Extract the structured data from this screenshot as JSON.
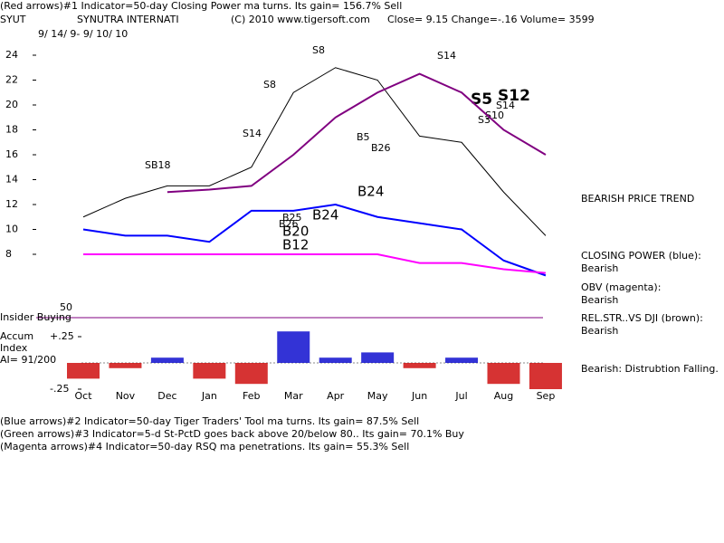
{
  "chart_data": [
    {
      "type": "line",
      "texts": [
        "(Red arrows)#1 Indicator=50-day Closing Power ma turns.  Its gain= 156.7% Sell",
        "SYUT",
        "SYNUTRA INTERNATI",
        "(C) 2010 www.tigersoft.com",
        "Close=  9.15  Change=-.16 Volume= 3599",
        "9/ 14/ 9- 9/ 10/ 10",
        "BEARISH PRICE TREND",
        "CLOSING POWER (blue):",
        "Bearish",
        "OBV (magenta):",
        "Bearish",
        "REL.STR..VS DJI (brown):",
        "Bearish",
        "Bearish: Distrubtion Falling.",
        "Insider Buying",
        "50",
        "(Blue arrows)#2 Indicator=50-day Tiger Traders' Tool ma turns.  Its gain= 87.5% Sell",
        "(Green arrows)#3 Indicator=5-d St-PctD goes back above 20/below 80..  Its gain= 70.1% Buy",
        "(Magenta arrows)#4 Indicator=50-day RSQ ma penetrations.  Its gain= 55.3% Sell"
      ],
      "annotations": [
        "SB18",
        "S14",
        "S8",
        "S8",
        "S14",
        "B5",
        "B26",
        "B25",
        "B26",
        "B20",
        "B12",
        "B24",
        "B24",
        "S5",
        "S12",
        "S14",
        "S10",
        "S3"
      ],
      "categories": [
        "Oct",
        "Nov",
        "Dec",
        "Jan",
        "Feb",
        "Mar",
        "Apr",
        "May",
        "Jun",
        "Jul",
        "Aug",
        "Sep"
      ],
      "series": [
        {
          "color": "#000000",
          "values": [
            11,
            12.5,
            13.5,
            13.5,
            15,
            21,
            23,
            22,
            17.5,
            17,
            13,
            9.5
          ]
        },
        {
          "color": "#800080",
          "values": [
            null,
            null,
            13,
            13.2,
            13.5,
            16,
            19,
            21,
            22.5,
            21,
            18,
            16
          ]
        },
        {
          "name": "CLOSING POWER (blue):",
          "color": "#0000ff",
          "values": [
            10,
            9.5,
            9.5,
            9,
            11.5,
            11.5,
            12,
            11,
            10.5,
            10,
            7.5,
            6.3
          ]
        },
        {
          "name": "OBV (magenta):",
          "color": "#ff00ff",
          "values": [
            8,
            8,
            8,
            8,
            8,
            8,
            8,
            8,
            7.3,
            7.3,
            6.8,
            6.5
          ]
        }
      ],
      "ylim": [
        6,
        26
      ],
      "yticks": [
        8,
        10,
        12,
        14,
        16,
        18,
        20,
        22,
        24
      ]
    },
    {
      "type": "bar",
      "texts": [
        "Accum",
        "Index",
        "AI= 91/200"
      ],
      "categories": [
        "Oct",
        "Nov",
        "Dec",
        "Jan",
        "Feb",
        "Mar",
        "Apr",
        "May",
        "Jun",
        "Jul",
        "Aug",
        "Sep"
      ],
      "values": [
        -0.15,
        -0.05,
        0.05,
        -0.15,
        -0.2,
        0.3,
        0.05,
        0.1,
        -0.05,
        0.05,
        -0.2,
        -0.25
      ],
      "pos_color": "#0000cc",
      "neg_color": "#cc0000",
      "ylim": [
        -0.35,
        0.35
      ],
      "yticks": [
        {
          "value": 0.25,
          "label": "+.25"
        },
        {
          "value": -0.25,
          "label": "-.25"
        }
      ]
    }
  ]
}
